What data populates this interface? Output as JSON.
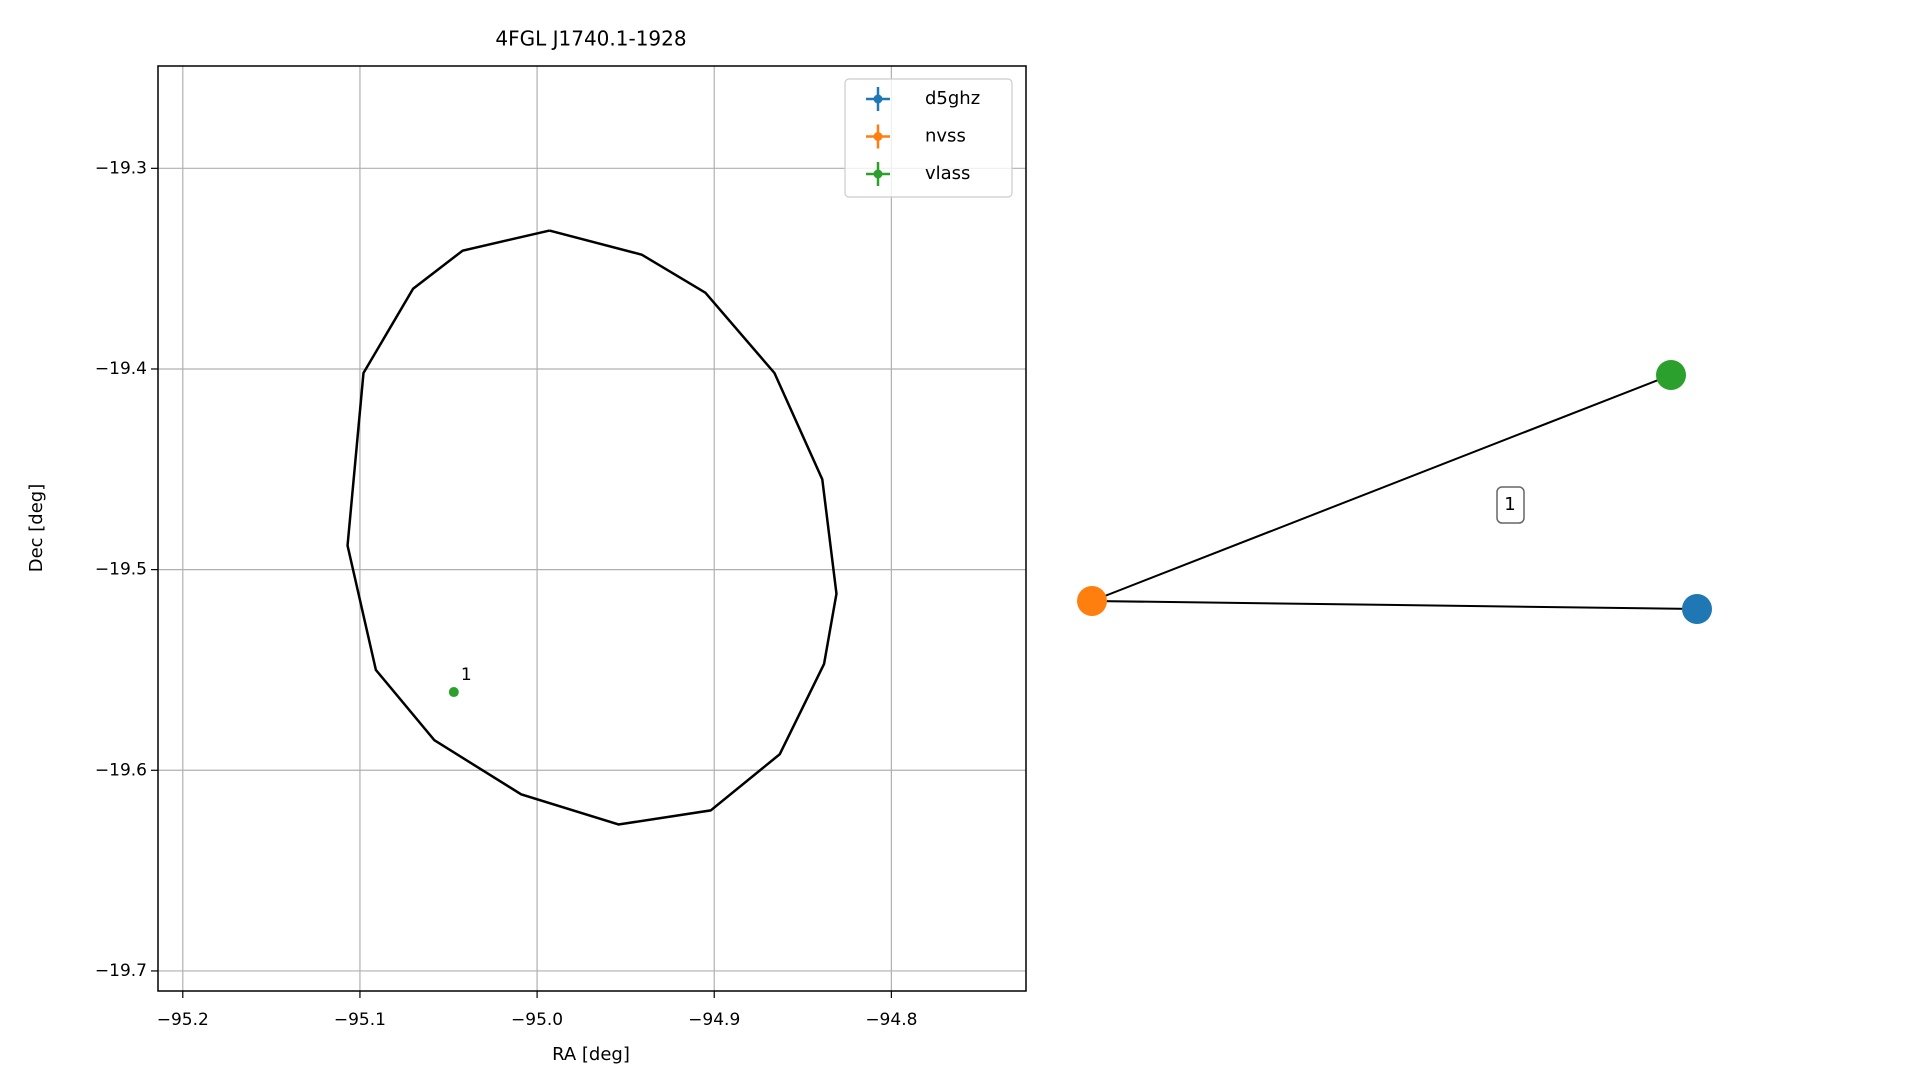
{
  "chart_data": {
    "type": "scatter",
    "title": "4FGL J1740.1-1928",
    "x_label": "RA [deg]",
    "y_label": "Dec [deg]",
    "xlim": [
      -95.214,
      -94.724
    ],
    "ylim": [
      -19.71,
      -19.249
    ],
    "xticks": [
      {
        "value": -95.2,
        "label": "−95.2"
      },
      {
        "value": -95.1,
        "label": "−95.1"
      },
      {
        "value": -95.0,
        "label": "−95.0"
      },
      {
        "value": -94.9,
        "label": "−94.9"
      },
      {
        "value": -94.8,
        "label": "−94.8"
      }
    ],
    "yticks": [
      {
        "value": -19.3,
        "label": "−19.3"
      },
      {
        "value": -19.4,
        "label": "−19.4"
      },
      {
        "value": -19.5,
        "label": "−19.5"
      },
      {
        "value": -19.6,
        "label": "−19.6"
      },
      {
        "value": -19.7,
        "label": "−19.7"
      }
    ],
    "grid": true,
    "legend": "upper right",
    "series": [
      {
        "name": "d5ghz",
        "color": "#1f77b4",
        "x": [],
        "y": [],
        "labels": []
      },
      {
        "name": "nvss",
        "color": "#ff7f0e",
        "x": [],
        "y": [],
        "labels": []
      },
      {
        "name": "vlass",
        "color": "#2ca02c",
        "x": [
          -95.047
        ],
        "y": [
          -19.561
        ],
        "labels": [
          "1"
        ]
      }
    ],
    "ellipse": {
      "color": "#000000",
      "x": [
        -94.993,
        -94.941,
        -94.905,
        -94.866,
        -94.839,
        -94.831,
        -94.838,
        -94.863,
        -94.902,
        -94.954,
        -95.009,
        -95.058,
        -95.091,
        -95.107,
        -95.098,
        -95.07,
        -95.042,
        -94.993
      ],
      "y": [
        -19.331,
        -19.343,
        -19.362,
        -19.402,
        -19.455,
        -19.512,
        -19.547,
        -19.592,
        -19.62,
        -19.627,
        -19.612,
        -19.585,
        -19.55,
        -19.488,
        -19.402,
        -19.36,
        -19.341,
        -19.331
      ]
    }
  },
  "graph": {
    "edges": [
      {
        "label": "1"
      }
    ]
  }
}
